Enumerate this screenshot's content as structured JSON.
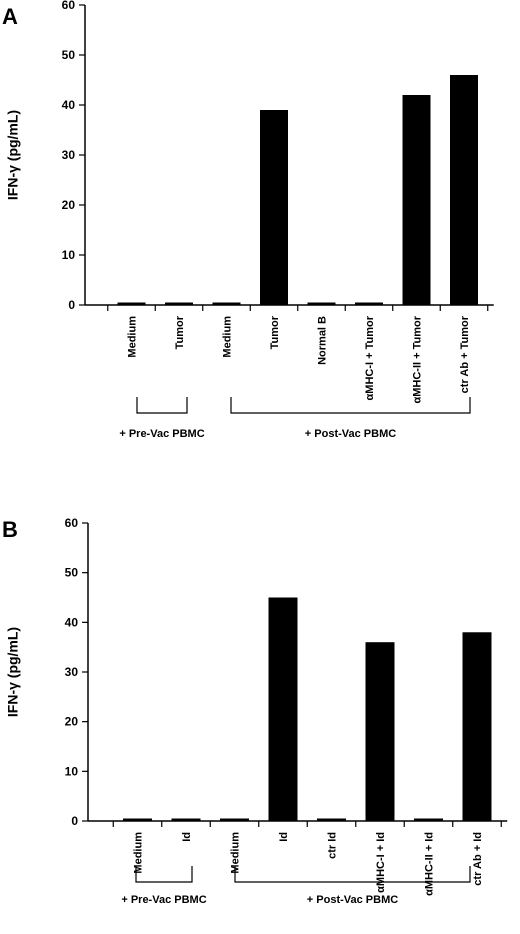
{
  "chart_data": [
    {
      "panel": "A",
      "type": "bar",
      "ylabel": "IFN-γ (pg/mL)",
      "ylim": [
        0,
        60
      ],
      "yticks": [
        0,
        10,
        20,
        30,
        40,
        50,
        60
      ],
      "categories": [
        "Medium",
        "Tumor",
        "Medium",
        "Tumor",
        "Normal B",
        "αMHC-I + Tumor",
        "αMHC-II + Tumor",
        "ctr Ab + Tumor"
      ],
      "values": [
        0.5,
        0.5,
        0.5,
        39,
        0.5,
        0.5,
        42,
        46
      ],
      "groups": [
        {
          "label": "+ Pre-Vac PBMC",
          "from": 0,
          "to": 1
        },
        {
          "label": "+ Post-Vac PBMC",
          "from": 2,
          "to": 7
        }
      ],
      "bar_color": "#000000",
      "grid": false
    },
    {
      "panel": "B",
      "type": "bar",
      "ylabel": "IFN-γ (pg/mL)",
      "ylim": [
        0,
        60
      ],
      "yticks": [
        0,
        10,
        20,
        30,
        40,
        50,
        60
      ],
      "categories": [
        "Medium",
        "Id",
        "Medium",
        "Id",
        "ctr Id",
        "αMHC-I + Id",
        "αMHC-II + Id",
        "ctr Ab + Id"
      ],
      "values": [
        0.5,
        0.5,
        0.5,
        45,
        0.5,
        36,
        0.5,
        38
      ],
      "groups": [
        {
          "label": "+ Pre-Vac PBMC",
          "from": 0,
          "to": 1
        },
        {
          "label": "+ Post-Vac PBMC",
          "from": 2,
          "to": 7
        }
      ],
      "bar_color": "#000000",
      "grid": false
    }
  ]
}
